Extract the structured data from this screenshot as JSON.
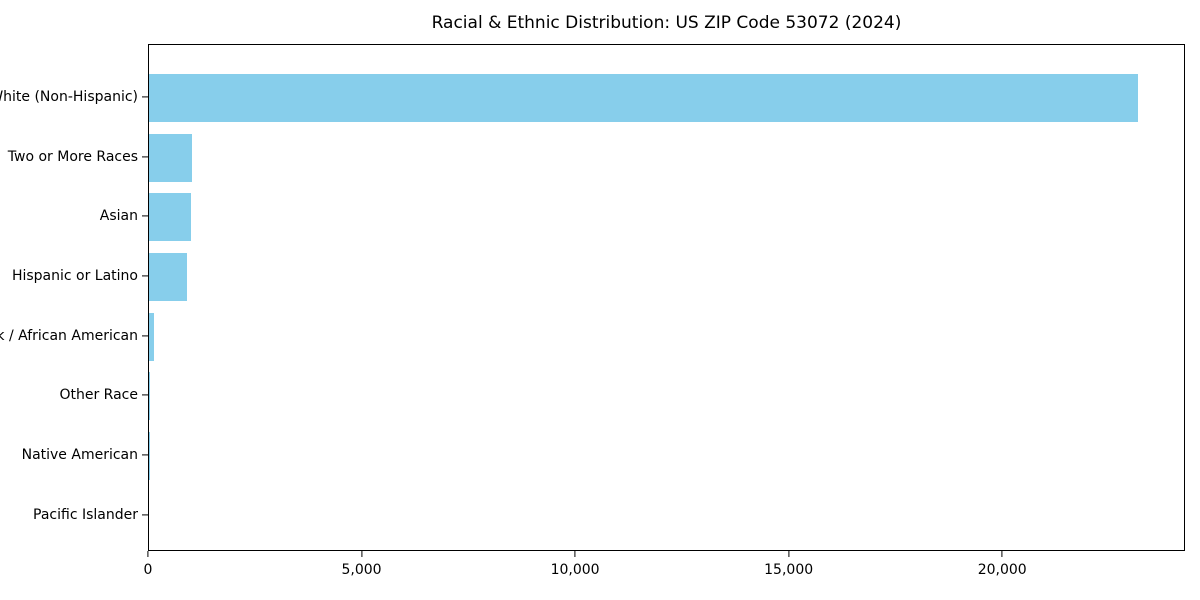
{
  "title": "Racial & Ethnic Distribution: US ZIP Code 53072 (2024)",
  "colors": {
    "bar": "#87CEEB",
    "background": "#ffffff",
    "axis": "#000000",
    "text": "#000000"
  },
  "chart_data": {
    "type": "bar",
    "orientation": "horizontal",
    "title": "Racial & Ethnic Distribution: US ZIP Code 53072 (2024)",
    "categories": [
      "White (Non-Hispanic)",
      "Two or More Races",
      "Asian",
      "Hispanic or Latino",
      "Black / African American",
      "Other Race",
      "Native American",
      "Pacific Islander"
    ],
    "values": [
      23150,
      1000,
      985,
      895,
      110,
      35,
      10,
      0
    ],
    "bar_color": "#87CEEB",
    "xlabel": "",
    "ylabel": "",
    "xlim": [
      0,
      24280
    ],
    "x_ticks": [
      0,
      5000,
      10000,
      15000,
      20000
    ],
    "x_tick_labels": [
      "0",
      "5,000",
      "10,000",
      "15,000",
      "20,000"
    ],
    "grid": false,
    "legend": null,
    "categories_order": "top-to-bottom"
  }
}
